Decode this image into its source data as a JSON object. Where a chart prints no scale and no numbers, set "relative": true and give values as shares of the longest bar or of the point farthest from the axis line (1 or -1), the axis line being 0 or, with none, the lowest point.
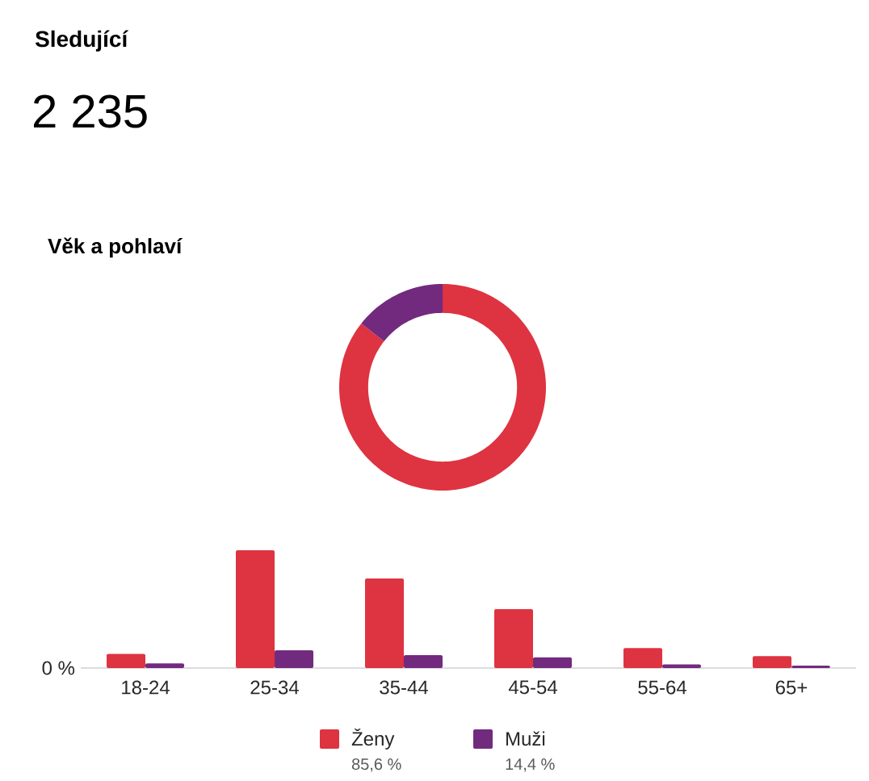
{
  "chart_data": [
    {
      "type": "other",
      "title": "Sledující",
      "subtitle": "2 235"
    },
    {
      "type": "donut",
      "title": "Věk a pohlaví",
      "categories": [
        "Ženy",
        "Muži"
      ],
      "values": [
        85.6,
        14.4
      ],
      "colors": [
        "#de3340",
        "#722a7e"
      ],
      "value_labels": [
        "85,6 %",
        "14,4 %"
      ],
      "legend": "bottom"
    },
    {
      "type": "bar",
      "relative": true,
      "categories": [
        "18-24",
        "25-34",
        "35-44",
        "45-54",
        "55-64",
        "65+"
      ],
      "annotations": [
        "0 %"
      ],
      "series": [
        {
          "color": "#de3340",
          "values": [
            0.12,
            1,
            0.76,
            0.5,
            0.17,
            0.1
          ]
        },
        {
          "color": "#722a7e",
          "values": [
            0.04,
            0.15,
            0.11,
            0.09,
            0.03,
            0.02
          ]
        }
      ]
    }
  ]
}
